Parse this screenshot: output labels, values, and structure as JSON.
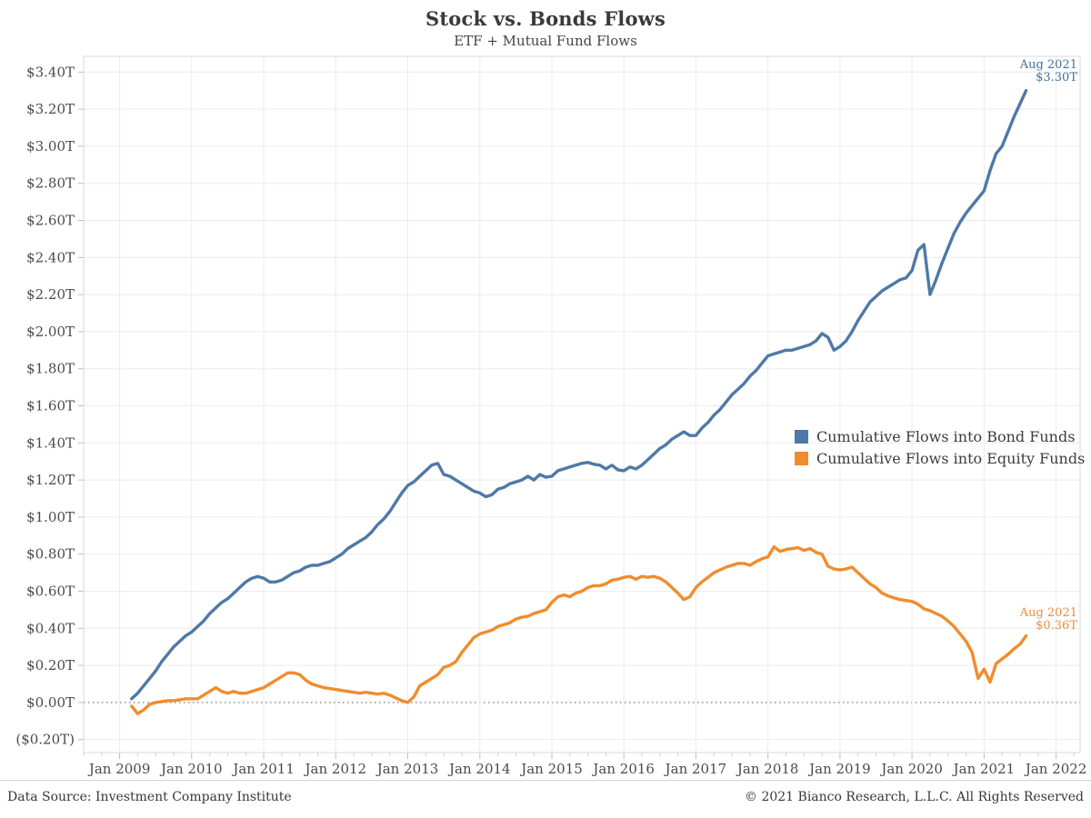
{
  "header": {
    "title": "Stock vs. Bonds Flows",
    "subtitle": "ETF + Mutual Fund Flows"
  },
  "legend": {
    "items": [
      {
        "label": "Cumulative Flows into Bond Funds",
        "color": "#4e79a7"
      },
      {
        "label": "Cumulative Flows into Equity Funds",
        "color": "#f18c2d"
      }
    ]
  },
  "annotations": {
    "bond": {
      "date": "Aug 2021",
      "value": "$3.30T",
      "color": "#44709d"
    },
    "equity": {
      "date": "Aug 2021",
      "value": "$0.36T",
      "color": "#ed8d3d"
    }
  },
  "footer": {
    "left": "Data Source: Investment Company Institute",
    "right": "© 2021 Bianco Research, L.L.C. All Rights Reserved"
  },
  "chart_data": {
    "type": "line",
    "title": "Stock vs. Bonds Flows",
    "subtitle": "ETF + Mutual Fund Flows",
    "unit": "USD trillions",
    "frequency": "monthly",
    "series_start": "Mar 2009",
    "series_end": "Aug 2021",
    "grid": true,
    "legend_position": "middle-right",
    "x_axis": {
      "tick_labels": [
        "Jan 2009",
        "Jan 2010",
        "Jan 2011",
        "Jan 2012",
        "Jan 2013",
        "Jan 2014",
        "Jan 2015",
        "Jan 2016",
        "Jan 2017",
        "Jan 2018",
        "Jan 2019",
        "Jan 2020",
        "Jan 2021",
        "Jan 2022"
      ],
      "months_per_tick": 12,
      "min_month": -6,
      "max_month": 160,
      "minor_tick_every_months": 3
    },
    "y_axis": {
      "tick_values": [
        3.4,
        3.2,
        3.0,
        2.8,
        2.6,
        2.4,
        2.2,
        2.0,
        1.8,
        1.6,
        1.4,
        1.2,
        1.0,
        0.8,
        0.6,
        0.4,
        0.2,
        0.0,
        -0.2
      ],
      "tick_labels": [
        "$3.40T",
        "$3.20T",
        "$3.00T",
        "$2.80T",
        "$2.60T",
        "$2.40T",
        "$2.20T",
        "$2.00T",
        "$1.80T",
        "$1.60T",
        "$1.40T",
        "$1.20T",
        "$1.00T",
        "$0.80T",
        "$0.60T",
        "$0.40T",
        "$0.20T",
        "$0.00T",
        "($0.20T)"
      ],
      "min": -0.27,
      "max": 3.485,
      "zero_line_dotted": true
    },
    "series": [
      {
        "name": "Cumulative Flows into Bond Funds",
        "color": "#4e79a7",
        "start_month": 2,
        "values": [
          0.02,
          0.05,
          0.09,
          0.13,
          0.17,
          0.22,
          0.26,
          0.3,
          0.33,
          0.36,
          0.38,
          0.41,
          0.44,
          0.48,
          0.51,
          0.54,
          0.56,
          0.59,
          0.62,
          0.65,
          0.67,
          0.68,
          0.67,
          0.65,
          0.65,
          0.66,
          0.68,
          0.7,
          0.71,
          0.73,
          0.74,
          0.74,
          0.75,
          0.76,
          0.78,
          0.8,
          0.83,
          0.85,
          0.87,
          0.89,
          0.92,
          0.96,
          0.99,
          1.03,
          1.08,
          1.13,
          1.17,
          1.19,
          1.22,
          1.25,
          1.28,
          1.29,
          1.23,
          1.22,
          1.2,
          1.18,
          1.16,
          1.14,
          1.13,
          1.11,
          1.12,
          1.15,
          1.16,
          1.18,
          1.19,
          1.2,
          1.22,
          1.2,
          1.23,
          1.215,
          1.22,
          1.25,
          1.26,
          1.27,
          1.28,
          1.29,
          1.295,
          1.285,
          1.28,
          1.26,
          1.28,
          1.255,
          1.25,
          1.27,
          1.26,
          1.28,
          1.31,
          1.34,
          1.37,
          1.39,
          1.42,
          1.44,
          1.46,
          1.44,
          1.44,
          1.48,
          1.51,
          1.55,
          1.58,
          1.62,
          1.66,
          1.69,
          1.72,
          1.76,
          1.79,
          1.83,
          1.87,
          1.88,
          1.89,
          1.9,
          1.9,
          1.91,
          1.92,
          1.93,
          1.95,
          1.99,
          1.97,
          1.9,
          1.92,
          1.95,
          2.0,
          2.06,
          2.11,
          2.16,
          2.19,
          2.22,
          2.24,
          2.26,
          2.28,
          2.29,
          2.33,
          2.44,
          2.47,
          2.2,
          2.28,
          2.37,
          2.45,
          2.53,
          2.59,
          2.64,
          2.68,
          2.72,
          2.76,
          2.87,
          2.96,
          3.0,
          3.08,
          3.16,
          3.23,
          3.3
        ]
      },
      {
        "name": "Cumulative Flows into Equity Funds",
        "color": "#f18c2d",
        "start_month": 2,
        "values": [
          -0.02,
          -0.06,
          -0.04,
          -0.01,
          0.0,
          0.005,
          0.01,
          0.01,
          0.015,
          0.02,
          0.02,
          0.02,
          0.04,
          0.06,
          0.08,
          0.06,
          0.05,
          0.06,
          0.05,
          0.05,
          0.06,
          0.07,
          0.08,
          0.1,
          0.12,
          0.14,
          0.16,
          0.16,
          0.15,
          0.12,
          0.1,
          0.09,
          0.08,
          0.075,
          0.07,
          0.065,
          0.06,
          0.055,
          0.05,
          0.055,
          0.05,
          0.045,
          0.05,
          0.04,
          0.025,
          0.01,
          0.0,
          0.03,
          0.09,
          0.11,
          0.13,
          0.15,
          0.19,
          0.2,
          0.22,
          0.27,
          0.31,
          0.35,
          0.37,
          0.38,
          0.39,
          0.41,
          0.42,
          0.43,
          0.45,
          0.46,
          0.465,
          0.48,
          0.49,
          0.5,
          0.54,
          0.57,
          0.58,
          0.57,
          0.59,
          0.6,
          0.62,
          0.63,
          0.63,
          0.64,
          0.66,
          0.665,
          0.675,
          0.68,
          0.665,
          0.68,
          0.675,
          0.68,
          0.67,
          0.65,
          0.62,
          0.59,
          0.555,
          0.57,
          0.62,
          0.65,
          0.675,
          0.7,
          0.715,
          0.73,
          0.74,
          0.75,
          0.75,
          0.74,
          0.76,
          0.775,
          0.785,
          0.84,
          0.815,
          0.825,
          0.83,
          0.835,
          0.82,
          0.83,
          0.81,
          0.8,
          0.735,
          0.72,
          0.715,
          0.72,
          0.73,
          0.7,
          0.67,
          0.64,
          0.62,
          0.59,
          0.575,
          0.565,
          0.555,
          0.55,
          0.545,
          0.53,
          0.505,
          0.495,
          0.48,
          0.465,
          0.44,
          0.41,
          0.37,
          0.33,
          0.27,
          0.13,
          0.18,
          0.11,
          0.21,
          0.235,
          0.26,
          0.29,
          0.315,
          0.36
        ]
      }
    ]
  }
}
